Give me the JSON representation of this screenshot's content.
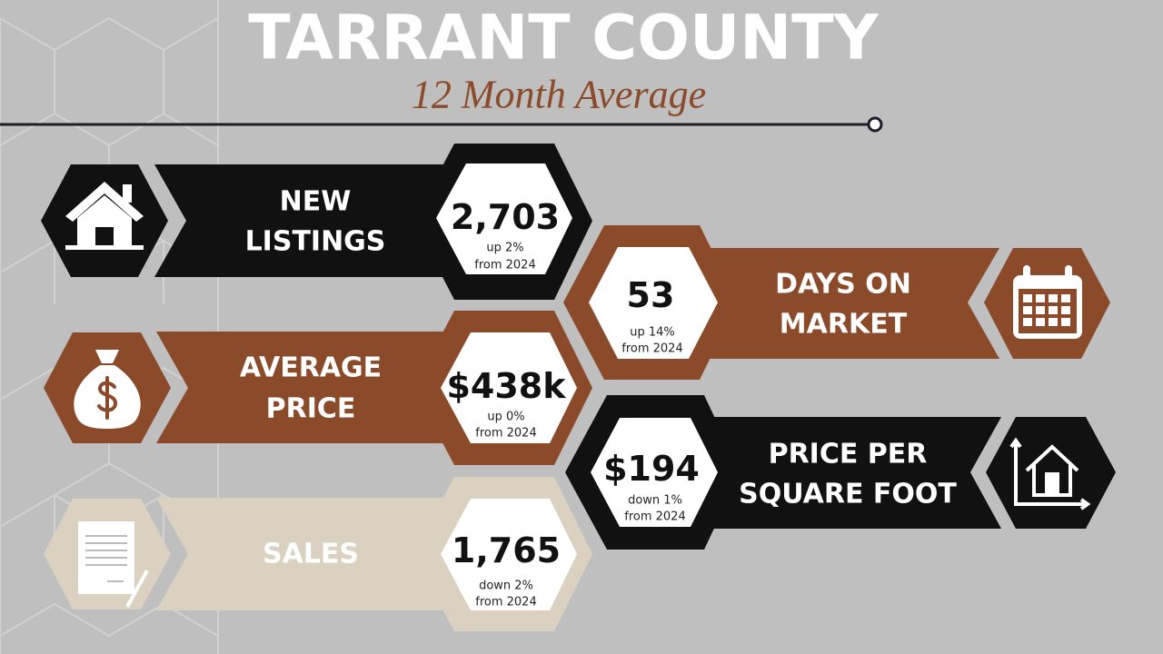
{
  "header": {
    "title": "TARRANT COUNTY",
    "subtitle": "12 Month Average"
  },
  "cards": [
    {
      "label": [
        "NEW",
        "LISTINGS"
      ],
      "value": "2,703",
      "change": "up 2%",
      "period": "from 2024"
    },
    {
      "label": [
        "DAYS ON",
        "MARKET"
      ],
      "value": "53",
      "change": "up 14%",
      "period": "from 2024"
    },
    {
      "label": [
        "AVERAGE",
        "PRICE"
      ],
      "value": "$438k",
      "change": "up 0%",
      "period": "from 2024"
    },
    {
      "label": [
        "PRICE PER",
        "SQUARE FOOT"
      ],
      "value": "$194",
      "change": "down 1%",
      "period": "from 2024"
    },
    {
      "label": [
        "SALES"
      ],
      "value": "1,765",
      "change": "down 2%",
      "period": "from 2024"
    }
  ]
}
